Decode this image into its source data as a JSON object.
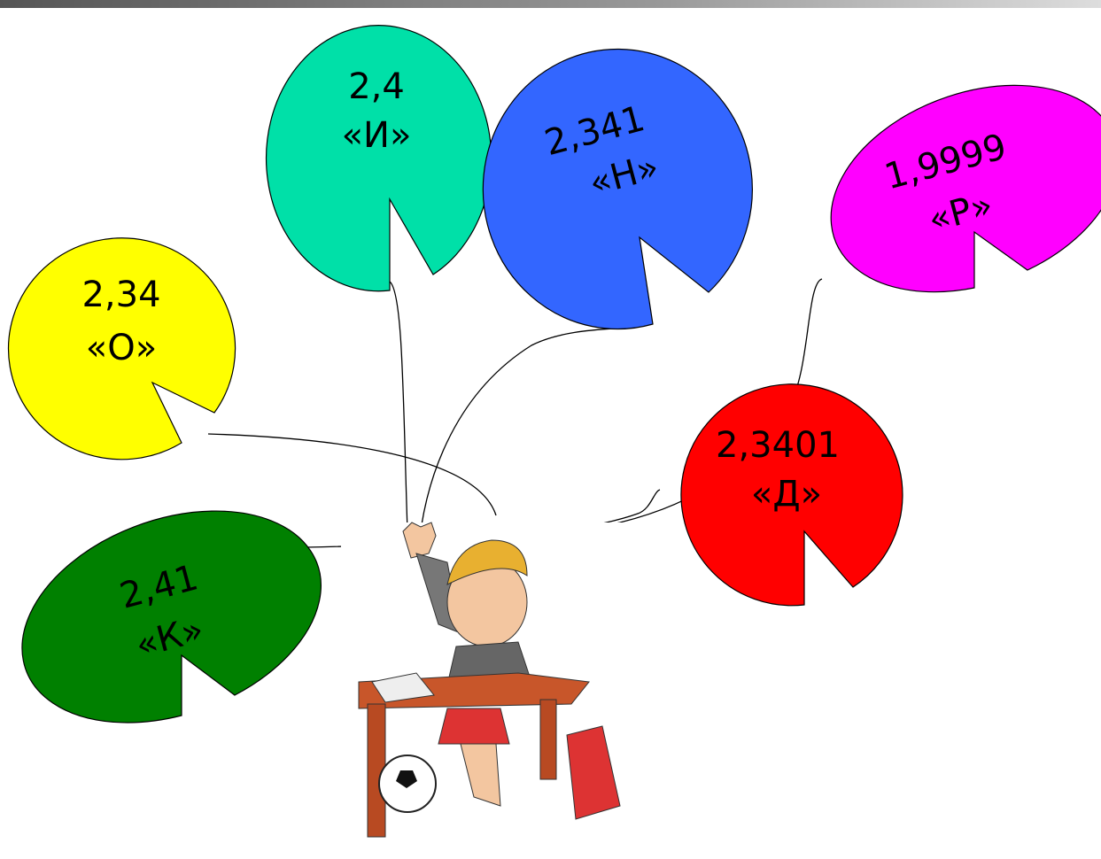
{
  "balloons": [
    {
      "number": "2,34",
      "letter": "«О»"
    },
    {
      "number": "2,4",
      "letter": "«И»"
    },
    {
      "number": "2,341",
      "letter": "«Н»"
    },
    {
      "number": "1,9999",
      "letter": "«Р»"
    },
    {
      "number": "2,3401",
      "letter": "«Д»"
    },
    {
      "number": "2,41",
      "letter": "«К»"
    }
  ]
}
